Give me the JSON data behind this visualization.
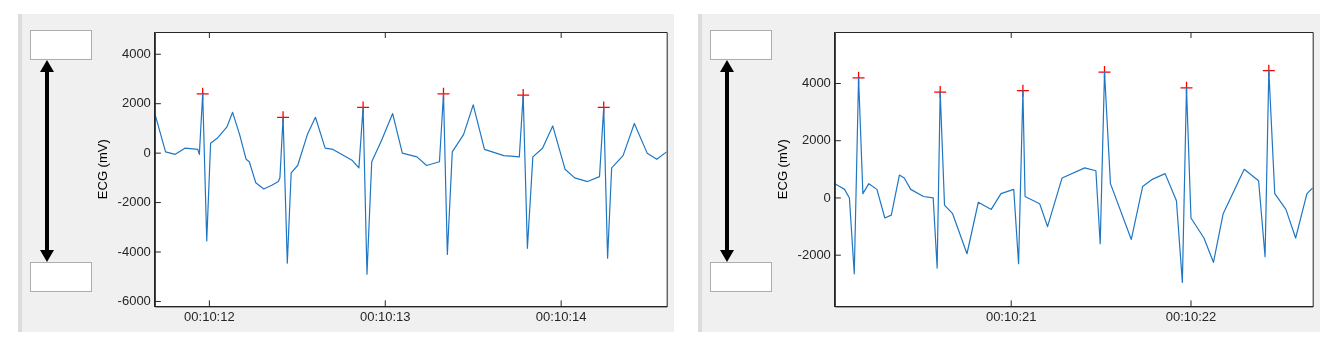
{
  "chart_data": [
    {
      "type": "line",
      "ylabel": "ECG (mV)",
      "xlim": [
        611.69,
        614.6
      ],
      "ylim": [
        -6200,
        4900
      ],
      "xticks": [
        {
          "value": 612,
          "label": "00:10:12"
        },
        {
          "value": 613,
          "label": "00:10:13"
        },
        {
          "value": 614,
          "label": "00:10:14"
        }
      ],
      "yticks": [
        -6000,
        -4000,
        -2000,
        0,
        2000,
        4000
      ],
      "grid": false,
      "legend": false,
      "series": [
        {
          "color": "#1f77c4",
          "marker": "none",
          "x": [
            611.692,
            611.751,
            611.806,
            611.861,
            611.934,
            611.943,
            611.962,
            611.985,
            612.007,
            612.044,
            612.099,
            612.132,
            612.172,
            612.209,
            612.227,
            612.264,
            612.309,
            612.355,
            612.392,
            612.401,
            612.419,
            612.443,
            612.465,
            612.502,
            612.557,
            612.603,
            612.658,
            612.703,
            612.776,
            612.813,
            612.85,
            612.874,
            612.896,
            612.923,
            612.978,
            613.042,
            613.097,
            613.18,
            613.235,
            613.308,
            613.331,
            613.353,
            613.381,
            613.445,
            613.5,
            613.564,
            613.674,
            613.762,
            613.784,
            613.808,
            613.839,
            613.894,
            613.952,
            614.022,
            614.077,
            614.15,
            614.218,
            614.242,
            614.264,
            614.287,
            614.352,
            614.416,
            614.489,
            614.544,
            614.599
          ],
          "values": [
            1550,
            50,
            -50,
            200,
            150,
            -50,
            2400,
            -3550,
            400,
            600,
            1050,
            1650,
            750,
            -250,
            -350,
            -1200,
            -1450,
            -1300,
            -1150,
            -1000,
            1450,
            -4450,
            -800,
            -500,
            750,
            1450,
            200,
            150,
            -150,
            -300,
            -600,
            1850,
            -4900,
            -350,
            500,
            1600,
            0,
            -150,
            -500,
            -350,
            2400,
            -4100,
            50,
            750,
            1950,
            150,
            -100,
            -150,
            2350,
            -3850,
            -150,
            200,
            1100,
            -650,
            -1000,
            -1150,
            -950,
            1850,
            -4250,
            -600,
            -100,
            1200,
            0,
            -250,
            50
          ]
        },
        {
          "type": "scatter",
          "color": "#ff0000",
          "marker": "cross",
          "x": [
            611.962,
            612.419,
            612.874,
            613.331,
            613.784,
            614.242
          ],
          "values": [
            2400,
            1450,
            1850,
            2400,
            2350,
            1850
          ]
        }
      ]
    },
    {
      "type": "line",
      "ylabel": "ECG (mV)",
      "xlim": [
        620.019,
        622.677
      ],
      "ylim": [
        -3790,
        5800
      ],
      "xticks": [
        {
          "value": 621,
          "label": "00:10:21"
        },
        {
          "value": 622,
          "label": "00:10:22"
        }
      ],
      "yticks": [
        -2000,
        0,
        2000,
        4000
      ],
      "grid": false,
      "legend": false,
      "series": [
        {
          "color": "#1f77c4",
          "marker": "none",
          "x": [
            620.019,
            620.046,
            620.073,
            620.1,
            620.127,
            620.151,
            620.175,
            620.208,
            620.253,
            620.297,
            620.333,
            620.378,
            620.405,
            620.441,
            620.512,
            620.566,
            620.588,
            620.605,
            620.629,
            620.674,
            620.754,
            620.817,
            620.889,
            620.943,
            621.014,
            621.041,
            621.065,
            621.077,
            621.158,
            621.202,
            621.283,
            621.409,
            621.471,
            621.495,
            621.519,
            621.552,
            621.668,
            621.731,
            621.785,
            621.856,
            621.919,
            621.952,
            621.975,
            622.0,
            622.072,
            622.125,
            622.179,
            622.296,
            622.376,
            622.412,
            622.433,
            622.466,
            622.528,
            622.582,
            622.645,
            622.677
          ],
          "values": [
            500,
            400,
            300,
            0,
            -2650,
            4200,
            150,
            500,
            300,
            -700,
            -600,
            800,
            700,
            300,
            50,
            0,
            -2450,
            3700,
            -250,
            -550,
            -1950,
            -150,
            -400,
            150,
            300,
            -2300,
            3750,
            50,
            -200,
            -1000,
            700,
            1050,
            950,
            -1600,
            4400,
            500,
            -1450,
            400,
            650,
            850,
            -100,
            -2950,
            3850,
            -700,
            -1400,
            -2250,
            -550,
            1000,
            600,
            -2050,
            4450,
            150,
            -400,
            -1400,
            150,
            350
          ]
        },
        {
          "type": "scatter",
          "color": "#ff0000",
          "marker": "cross",
          "x": [
            620.151,
            620.605,
            621.065,
            621.519,
            621.975,
            622.433
          ],
          "values": [
            4200,
            3700,
            3750,
            4400,
            3850,
            4450
          ]
        }
      ]
    }
  ]
}
